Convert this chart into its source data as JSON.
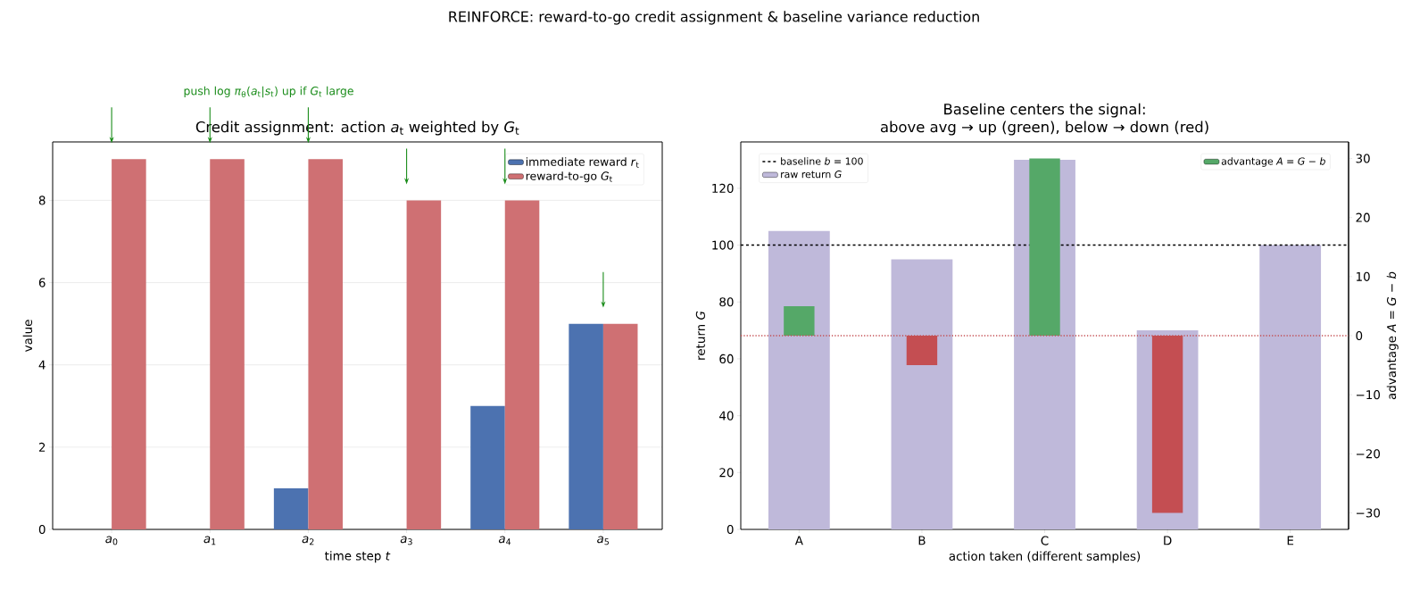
{
  "chart_data": [
    {
      "type": "bar",
      "title": "Credit assignment: action *a*$_{t}$ weighted by *G*$_{t}$",
      "xlabel": "time step *t*",
      "ylabel": "value",
      "annotations": [
        "REINFORCE: reward-to-go credit assignment & baseline variance reduction",
        "push log *π*$_{θ}$(*a*$_{t}$|*s*$_{t}$) up if *G*$_{t}$ large"
      ],
      "categories": [
        "*a*$_{0}$",
        "*a*$_{1}$",
        "*a*$_{2}$",
        "*a*$_{3}$",
        "*a*$_{4}$",
        "*a*$_{5}$"
      ],
      "series": [
        {
          "name": "immediate reward *r*$_{t}$",
          "color": "#4c72b0",
          "values": [
            0,
            0,
            1,
            0,
            3,
            5
          ]
        },
        {
          "name": "reward-to-go *G*$_{t}$",
          "color": "#cf7073",
          "values": [
            9,
            9,
            9,
            8,
            8,
            5
          ]
        }
      ],
      "ylim": [
        0,
        9.42
      ],
      "yticks": [
        0,
        2,
        4,
        6,
        8
      ],
      "grid": "y",
      "legend": "top right"
    },
    {
      "type": "bar",
      "title": "Baseline centers the signal:",
      "subtitle": "above avg → up (green), below → down (red)",
      "xlabel": "action taken (different samples)",
      "ylabel": "return *G*",
      "y2label": "advantage *A* = *G* − *b*",
      "categories": [
        "A",
        "B",
        "C",
        "D",
        "E"
      ],
      "series": [
        {
          "name": "raw return *G*",
          "color": "#bfb9da",
          "values": [
            105,
            95,
            130,
            70,
            100
          ]
        },
        {
          "name": "advantage *A* = *G* − *b*",
          "color": "#55a868",
          "colors": [
            "#55a868",
            "#c44e52",
            "#55a868",
            "#c44e52",
            "#55a868"
          ],
          "values": [
            5,
            -5,
            30,
            -30,
            0
          ],
          "axis": "y2"
        }
      ],
      "ylim": [
        0,
        136.3
      ],
      "yticks": [
        0,
        20,
        40,
        60,
        80,
        100,
        120
      ],
      "y2lim": [
        -32.8,
        32.8
      ],
      "y2ticks": [
        {
          "value": -30,
          "label": "−30"
        },
        {
          "value": -20,
          "label": "−20"
        },
        {
          "value": -10,
          "label": "−10"
        },
        0,
        10,
        20,
        30
      ],
      "ref_lines": [
        {
          "axis": "y",
          "value": 100,
          "label": "baseline *b* = 100",
          "color": "#000000",
          "line_style": "dashed"
        },
        {
          "axis": "y2",
          "value": 0,
          "color": "#c44e52",
          "line_style": "dotted"
        }
      ],
      "legend": "top left"
    }
  ]
}
